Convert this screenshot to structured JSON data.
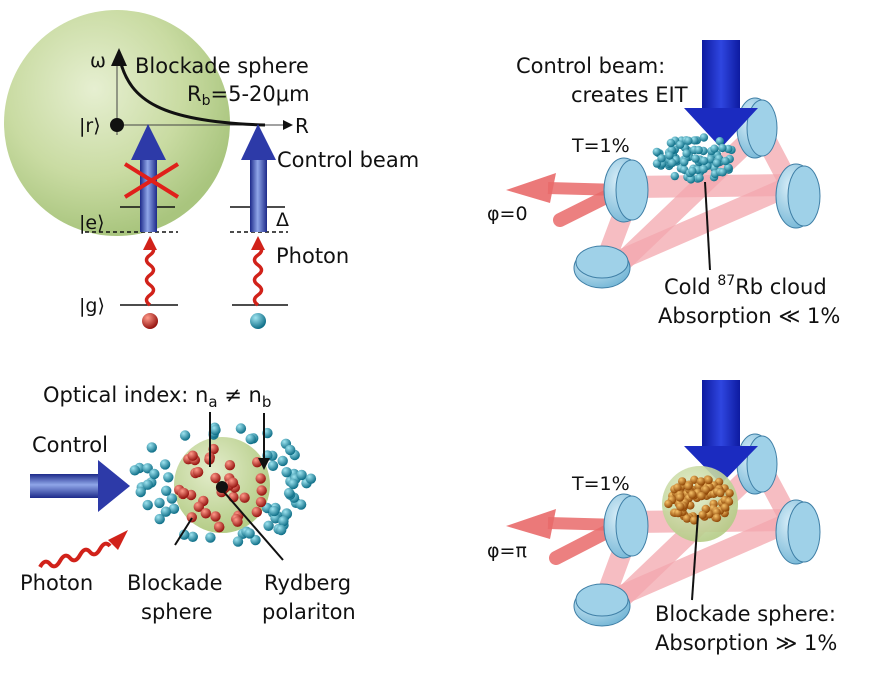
{
  "panel_a": {
    "omega": "ω",
    "blockade_sphere": "Blockade sphere",
    "rb_R": "R",
    "rb_sub": "b",
    "rb_value": "=5-20μm",
    "r_label": "R",
    "state_r": "|r⟩",
    "state_e": "|e⟩",
    "state_g": "|g⟩",
    "control_beam": "Control beam",
    "delta": "Δ",
    "photon": "Photon"
  },
  "panel_b": {
    "control_line1": "Control beam:",
    "control_line2": "creates EIT",
    "transmission": "T=1%",
    "phase": "φ=0",
    "cloud_pre": "Cold ",
    "cloud_sup": "87",
    "cloud_post": "Rb cloud",
    "absorption": "Absorption ≪ 1%"
  },
  "panel_c": {
    "optical_index_pre": "Optical index: n",
    "na_sub": "a",
    "neq": " ≠ n",
    "nb_sub": "b",
    "control": "Control",
    "photon": "Photon",
    "blockade_line1": "Blockade",
    "blockade_line2": "sphere",
    "rydberg_line1": "Rydberg",
    "rydberg_line2": "polariton"
  },
  "panel_d": {
    "transmission": "T=1%",
    "phase": "φ=π",
    "blockade_line1": "Blockade sphere:",
    "absorption": "Absorption ≫ 1%"
  },
  "colors": {
    "sphere_green": "#b6cf8a",
    "beam_blue": "#2d3aa8",
    "photon_red": "#d1221a",
    "atom_teal": "#1f8fa8",
    "atom_red": "#c0271d",
    "mirror_blue": "#8cc6e0",
    "cloud_orange": "#c76d12"
  },
  "icons": [
    "blue-beam-arrow",
    "red-photon-wave",
    "cross-mark",
    "mirror-disk",
    "atom-ball"
  ]
}
